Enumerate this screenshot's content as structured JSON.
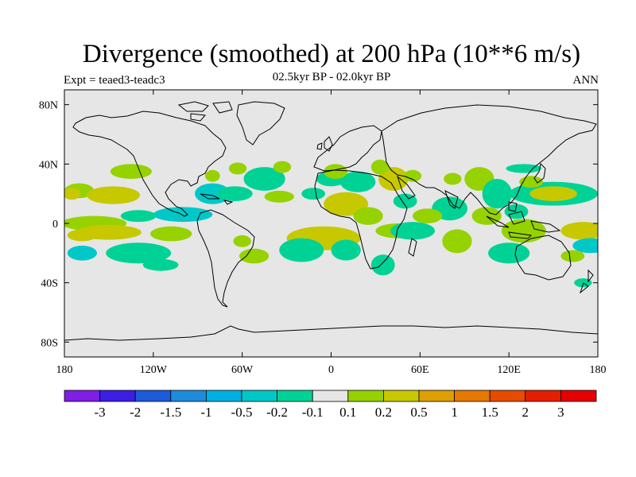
{
  "header": {
    "title": "Divergence (smoothed) at 200 hPa (10**6 m/s)",
    "subtitle": "02.5kyr BP - 02.0kyr BP",
    "experiment": "Expt = teaed3-teadc3",
    "season": "ANN"
  },
  "map": {
    "background_color": "#e6e6e6",
    "projection": "cylindrical-equidistant",
    "lon_range": [
      -180,
      180
    ],
    "lat_range": [
      -90,
      90
    ],
    "x_ticks": [
      {
        "lon": -180,
        "label": "180"
      },
      {
        "lon": -120,
        "label": "120W"
      },
      {
        "lon": -60,
        "label": "60W"
      },
      {
        "lon": 0,
        "label": "0"
      },
      {
        "lon": 60,
        "label": "60E"
      },
      {
        "lon": 120,
        "label": "120E"
      },
      {
        "lon": 180,
        "label": "180"
      }
    ],
    "y_ticks": [
      {
        "lat": 80,
        "label": "80N"
      },
      {
        "lat": 40,
        "label": "40N"
      },
      {
        "lat": 0,
        "label": "0"
      },
      {
        "lat": -40,
        "label": "40S"
      },
      {
        "lat": -80,
        "label": "80S"
      }
    ]
  },
  "chart_data": {
    "type": "heatmap",
    "variable": "Divergence (smoothed) at 200 hPa",
    "units": "10**6 m/s",
    "levels": [
      "-3",
      "-2",
      "-1.5",
      "-1",
      "-0.5",
      "-0.2",
      "-0.1",
      "0.1",
      "0.2",
      "0.5",
      "1",
      "1.5",
      "2",
      "3"
    ],
    "colors": [
      "#7f1ee6",
      "#3c1ee6",
      "#1e5adc",
      "#1e8cdc",
      "#00afe1",
      "#00c8c8",
      "#00d296",
      "#e6e6e6",
      "#96d200",
      "#c8c800",
      "#dca000",
      "#e67800",
      "#e64b00",
      "#e61e00",
      "#e60000"
    ],
    "features": [
      {
        "lon": -170,
        "lat": 22,
        "rlon": 10,
        "rlat": 5,
        "bin": 8
      },
      {
        "lon": -147,
        "lat": 19,
        "rlon": 18,
        "rlat": 6,
        "bin": 9
      },
      {
        "lon": -175,
        "lat": 20,
        "rlon": 6,
        "rlat": 4,
        "bin": 9
      },
      {
        "lon": -160,
        "lat": 0,
        "rlon": 22,
        "rlat": 5,
        "bin": 8
      },
      {
        "lon": -100,
        "lat": 6,
        "rlon": 20,
        "rlat": 5,
        "bin": 5
      },
      {
        "lon": -130,
        "lat": 5,
        "rlon": 12,
        "rlat": 4,
        "bin": 6
      },
      {
        "lon": -150,
        "lat": -6,
        "rlon": 22,
        "rlat": 5,
        "bin": 9
      },
      {
        "lon": -168,
        "lat": -8,
        "rlon": 10,
        "rlat": 4,
        "bin": 9
      },
      {
        "lon": -108,
        "lat": -7,
        "rlon": 14,
        "rlat": 5,
        "bin": 8
      },
      {
        "lon": -168,
        "lat": -20,
        "rlon": 10,
        "rlat": 5,
        "bin": 5
      },
      {
        "lon": -130,
        "lat": -20,
        "rlon": 22,
        "rlat": 7,
        "bin": 6
      },
      {
        "lon": -115,
        "lat": -28,
        "rlon": 12,
        "rlat": 4,
        "bin": 6
      },
      {
        "lon": -135,
        "lat": 35,
        "rlon": 14,
        "rlat": 5,
        "bin": 8
      },
      {
        "lon": -80,
        "lat": 20,
        "rlon": 12,
        "rlat": 7,
        "bin": 5
      },
      {
        "lon": -65,
        "lat": 20,
        "rlon": 12,
        "rlat": 5,
        "bin": 6
      },
      {
        "lon": -80,
        "lat": 32,
        "rlon": 5,
        "rlat": 4,
        "bin": 8
      },
      {
        "lon": -63,
        "lat": 37,
        "rlon": 6,
        "rlat": 4,
        "bin": 8
      },
      {
        "lon": -60,
        "lat": -12,
        "rlon": 6,
        "rlat": 4,
        "bin": 8
      },
      {
        "lon": -52,
        "lat": -22,
        "rlon": 10,
        "rlat": 5,
        "bin": 8
      },
      {
        "lon": -45,
        "lat": 30,
        "rlon": 14,
        "rlat": 8,
        "bin": 6
      },
      {
        "lon": -33,
        "lat": 38,
        "rlon": 6,
        "rlat": 4,
        "bin": 8
      },
      {
        "lon": -35,
        "lat": 18,
        "rlon": 10,
        "rlat": 4,
        "bin": 8
      },
      {
        "lon": -12,
        "lat": 20,
        "rlon": 8,
        "rlat": 4,
        "bin": 6
      },
      {
        "lon": 0,
        "lat": 30,
        "rlon": 10,
        "rlat": 5,
        "bin": 6
      },
      {
        "lon": 18,
        "lat": 28,
        "rlon": 12,
        "rlat": 7,
        "bin": 6
      },
      {
        "lon": 3,
        "lat": 35,
        "rlon": 8,
        "rlat": 5,
        "bin": 8
      },
      {
        "lon": -5,
        "lat": -10,
        "rlon": 25,
        "rlat": 8,
        "bin": 9
      },
      {
        "lon": -20,
        "lat": -18,
        "rlon": 15,
        "rlat": 8,
        "bin": 6
      },
      {
        "lon": 10,
        "lat": -18,
        "rlon": 10,
        "rlat": 7,
        "bin": 6
      },
      {
        "lon": 10,
        "lat": 13,
        "rlon": 15,
        "rlat": 8,
        "bin": 9
      },
      {
        "lon": 25,
        "lat": 5,
        "rlon": 10,
        "rlat": 6,
        "bin": 8
      },
      {
        "lon": 45,
        "lat": -5,
        "rlon": 15,
        "rlat": 5,
        "bin": 8
      },
      {
        "lon": 35,
        "lat": -28,
        "rlon": 8,
        "rlat": 7,
        "bin": 6
      },
      {
        "lon": 55,
        "lat": -5,
        "rlon": 15,
        "rlat": 6,
        "bin": 6
      },
      {
        "lon": 42,
        "lat": 30,
        "rlon": 10,
        "rlat": 8,
        "bin": 9
      },
      {
        "lon": 33,
        "lat": 38,
        "rlon": 6,
        "rlat": 5,
        "bin": 8
      },
      {
        "lon": 50,
        "lat": 15,
        "rlon": 8,
        "rlat": 5,
        "bin": 6
      },
      {
        "lon": 55,
        "lat": 32,
        "rlon": 6,
        "rlat": 4,
        "bin": 8
      },
      {
        "lon": 80,
        "lat": 10,
        "rlon": 12,
        "rlat": 8,
        "bin": 6
      },
      {
        "lon": 65,
        "lat": 5,
        "rlon": 10,
        "rlat": 5,
        "bin": 8
      },
      {
        "lon": 82,
        "lat": 30,
        "rlon": 6,
        "rlat": 4,
        "bin": 8
      },
      {
        "lon": 85,
        "lat": -12,
        "rlon": 10,
        "rlat": 8,
        "bin": 8
      },
      {
        "lon": 100,
        "lat": 30,
        "rlon": 10,
        "rlat": 8,
        "bin": 8
      },
      {
        "lon": 112,
        "lat": 20,
        "rlon": 10,
        "rlat": 10,
        "bin": 6
      },
      {
        "lon": 105,
        "lat": 5,
        "rlon": 10,
        "rlat": 6,
        "bin": 8
      },
      {
        "lon": 150,
        "lat": 20,
        "rlon": 30,
        "rlat": 8,
        "bin": 6
      },
      {
        "lon": 150,
        "lat": 20,
        "rlon": 16,
        "rlat": 5,
        "bin": 9
      },
      {
        "lon": 125,
        "lat": 8,
        "rlon": 8,
        "rlat": 5,
        "bin": 6
      },
      {
        "lon": 130,
        "lat": -5,
        "rlon": 15,
        "rlat": 8,
        "bin": 8
      },
      {
        "lon": 120,
        "lat": -20,
        "rlon": 14,
        "rlat": 7,
        "bin": 6
      },
      {
        "lon": 170,
        "lat": -5,
        "rlon": 15,
        "rlat": 6,
        "bin": 9
      },
      {
        "lon": 175,
        "lat": -15,
        "rlon": 12,
        "rlat": 5,
        "bin": 5
      },
      {
        "lon": 163,
        "lat": -22,
        "rlon": 8,
        "rlat": 4,
        "bin": 8
      },
      {
        "lon": 170,
        "lat": -40,
        "rlon": 6,
        "rlat": 3,
        "bin": 6
      },
      {
        "lon": 130,
        "lat": 37,
        "rlon": 12,
        "rlat": 3,
        "bin": 6
      },
      {
        "lon": 135,
        "lat": 28,
        "rlon": 8,
        "rlat": 4,
        "bin": 8
      }
    ]
  }
}
